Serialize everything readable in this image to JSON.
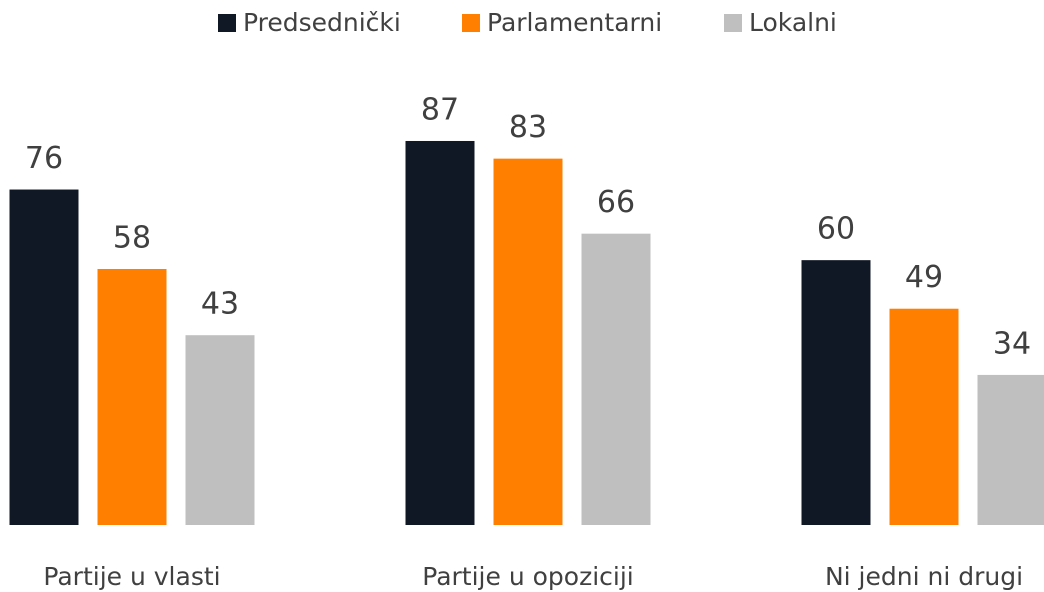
{
  "chart_data": {
    "type": "bar",
    "categories": [
      "Partije u vlasti",
      "Partije u opoziciji",
      "Ni jedni ni drugi"
    ],
    "series": [
      {
        "name": "Predsednički",
        "color": "#0f1824",
        "values": [
          76,
          87,
          60
        ]
      },
      {
        "name": "Parlamentarni",
        "color": "#ff7f00",
        "values": [
          58,
          83,
          49
        ]
      },
      {
        "name": "Lokalni",
        "color": "#bfbfbf",
        "values": [
          43,
          66,
          34
        ]
      }
    ],
    "legend": "top"
  }
}
